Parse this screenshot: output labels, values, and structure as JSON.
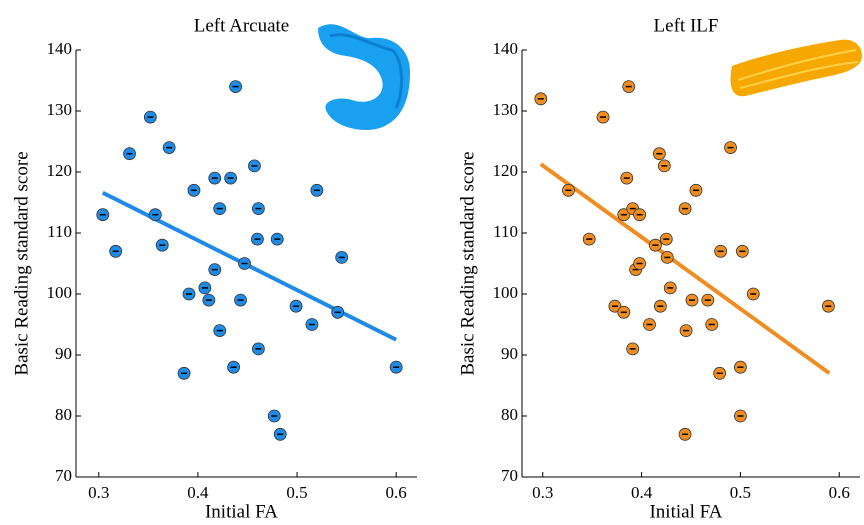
{
  "chart_data": [
    {
      "type": "scatter",
      "title": "Left Arcuate",
      "xlabel": "Initial FA",
      "ylabel": "Basic Reading standard score",
      "xlim": [
        0.277,
        0.621
      ],
      "ylim": [
        70,
        140
      ],
      "xticks": [
        0.3,
        0.4,
        0.5,
        0.6
      ],
      "yticks": [
        70,
        80,
        90,
        100,
        110,
        120,
        130,
        140
      ],
      "series": [
        {
          "color": "#1f8be6",
          "x": [
            0.304,
            0.317,
            0.331,
            0.352,
            0.357,
            0.364,
            0.371,
            0.386,
            0.391,
            0.396,
            0.407,
            0.411,
            0.417,
            0.417,
            0.422,
            0.422,
            0.433,
            0.436,
            0.438,
            0.443,
            0.447,
            0.457,
            0.46,
            0.461,
            0.461,
            0.477,
            0.48,
            0.483,
            0.499,
            0.515,
            0.52,
            0.541,
            0.545,
            0.6
          ],
          "values": [
            113,
            107,
            123,
            129,
            113,
            108,
            124,
            87,
            100,
            117,
            101,
            99,
            104,
            119,
            114,
            94,
            119,
            88,
            134,
            99,
            105,
            121,
            109,
            91,
            114,
            80,
            109,
            77,
            98,
            95,
            117,
            97,
            106,
            88
          ]
        }
      ],
      "trend": {
        "color": "#1f8be6",
        "x": [
          0.304,
          0.6
        ],
        "values": [
          116.6,
          92.5
        ]
      }
    },
    {
      "type": "scatter",
      "title": "Left ILF",
      "xlabel": "Initial FA",
      "ylabel": "Basic Reading standard score",
      "xlim": [
        0.279,
        0.621
      ],
      "ylim": [
        70,
        140
      ],
      "xticks": [
        0.3,
        0.4,
        0.5,
        0.6
      ],
      "yticks": [
        70,
        80,
        90,
        100,
        110,
        120,
        130,
        140
      ],
      "series": [
        {
          "color": "#ef8c22",
          "x": [
            0.298,
            0.326,
            0.347,
            0.361,
            0.373,
            0.382,
            0.382,
            0.385,
            0.387,
            0.391,
            0.391,
            0.394,
            0.398,
            0.398,
            0.408,
            0.414,
            0.418,
            0.419,
            0.423,
            0.425,
            0.426,
            0.429,
            0.444,
            0.444,
            0.445,
            0.451,
            0.455,
            0.467,
            0.471,
            0.479,
            0.48,
            0.49,
            0.5,
            0.5,
            0.502,
            0.513,
            0.589
          ],
          "values": [
            132,
            117,
            109,
            129,
            98,
            97,
            113,
            119,
            134,
            114,
            91,
            104,
            105,
            113,
            95,
            108,
            123,
            98,
            121,
            109,
            106,
            101,
            114,
            77,
            94,
            99,
            117,
            99,
            95,
            87,
            107,
            124,
            88,
            80,
            107,
            100,
            98
          ]
        }
      ],
      "trend": {
        "color": "#ef8c22",
        "x": [
          0.298,
          0.59
        ],
        "values": [
          121.3,
          87
        ]
      }
    }
  ]
}
